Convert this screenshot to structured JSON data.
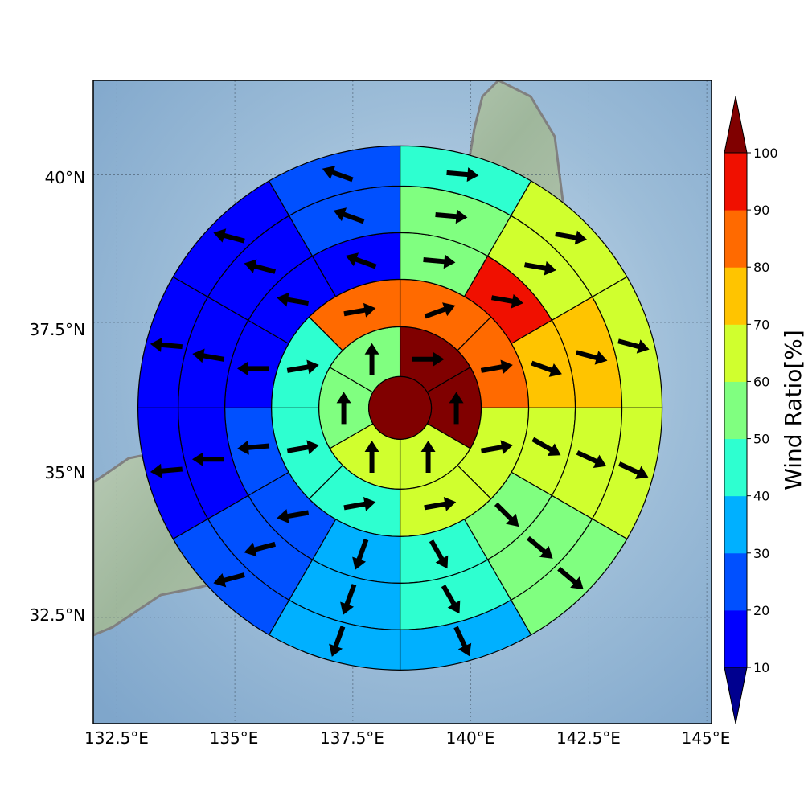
{
  "map": {
    "x_ticks": [
      "132.5°E",
      "135°E",
      "137.5°E",
      "140°E",
      "142.5°E",
      "145°E"
    ],
    "y_ticks": [
      "32.5°N",
      "35°N",
      "37.5°N",
      "40°N"
    ],
    "lon_range": [
      132,
      145.1
    ],
    "lat_range": [
      30.7,
      41.6
    ],
    "grid": true,
    "center_lon": 138.5,
    "center_lat": 36.05
  },
  "colorbar": {
    "label": "Wind Ratio[%]",
    "ticks": [
      "10",
      "20",
      "30",
      "40",
      "50",
      "60",
      "70",
      "80",
      "90",
      "100"
    ],
    "extend": "both",
    "colors": [
      "#0000ff",
      "#0050ff",
      "#00b0ff",
      "#2effd0",
      "#80ff80",
      "#d0ff2e",
      "#ffc400",
      "#ff6a00",
      "#f01000"
    ],
    "under_color": "#00008f",
    "over_color": "#800000"
  },
  "chart_data": {
    "type": "polar-sector-map",
    "ring_units": "rings from center outward",
    "center_value": 100,
    "rings": [
      {
        "sectors": 6,
        "values": [
          100,
          100,
          60,
          60,
          55,
          50
        ]
      },
      {
        "sectors": 8,
        "values": [
          85,
          80,
          60,
          60,
          45,
          40,
          45,
          85
        ]
      },
      {
        "sectors": 12,
        "values": [
          55,
          90,
          75,
          65,
          55,
          45,
          35,
          25,
          20,
          15,
          15,
          15
        ]
      },
      {
        "sectors": 12,
        "values": [
          55,
          65,
          70,
          60,
          50,
          40,
          30,
          25,
          15,
          15,
          15,
          25
        ]
      },
      {
        "sectors": 12,
        "values": [
          45,
          60,
          65,
          60,
          55,
          35,
          30,
          20,
          15,
          15,
          15,
          20
        ]
      }
    ],
    "arrow_angles_deg": [
      [
        90,
        0,
        0,
        0,
        0,
        0
      ],
      [
        70,
        80,
        80,
        80,
        80,
        80,
        80,
        80
      ],
      [
        95,
        100,
        110,
        120,
        135,
        150,
        200,
        260,
        265,
        270,
        280,
        290
      ],
      [
        95,
        100,
        105,
        115,
        130,
        150,
        200,
        255,
        270,
        280,
        285,
        290
      ],
      [
        95,
        100,
        105,
        115,
        130,
        155,
        200,
        255,
        265,
        275,
        285,
        290
      ]
    ]
  }
}
